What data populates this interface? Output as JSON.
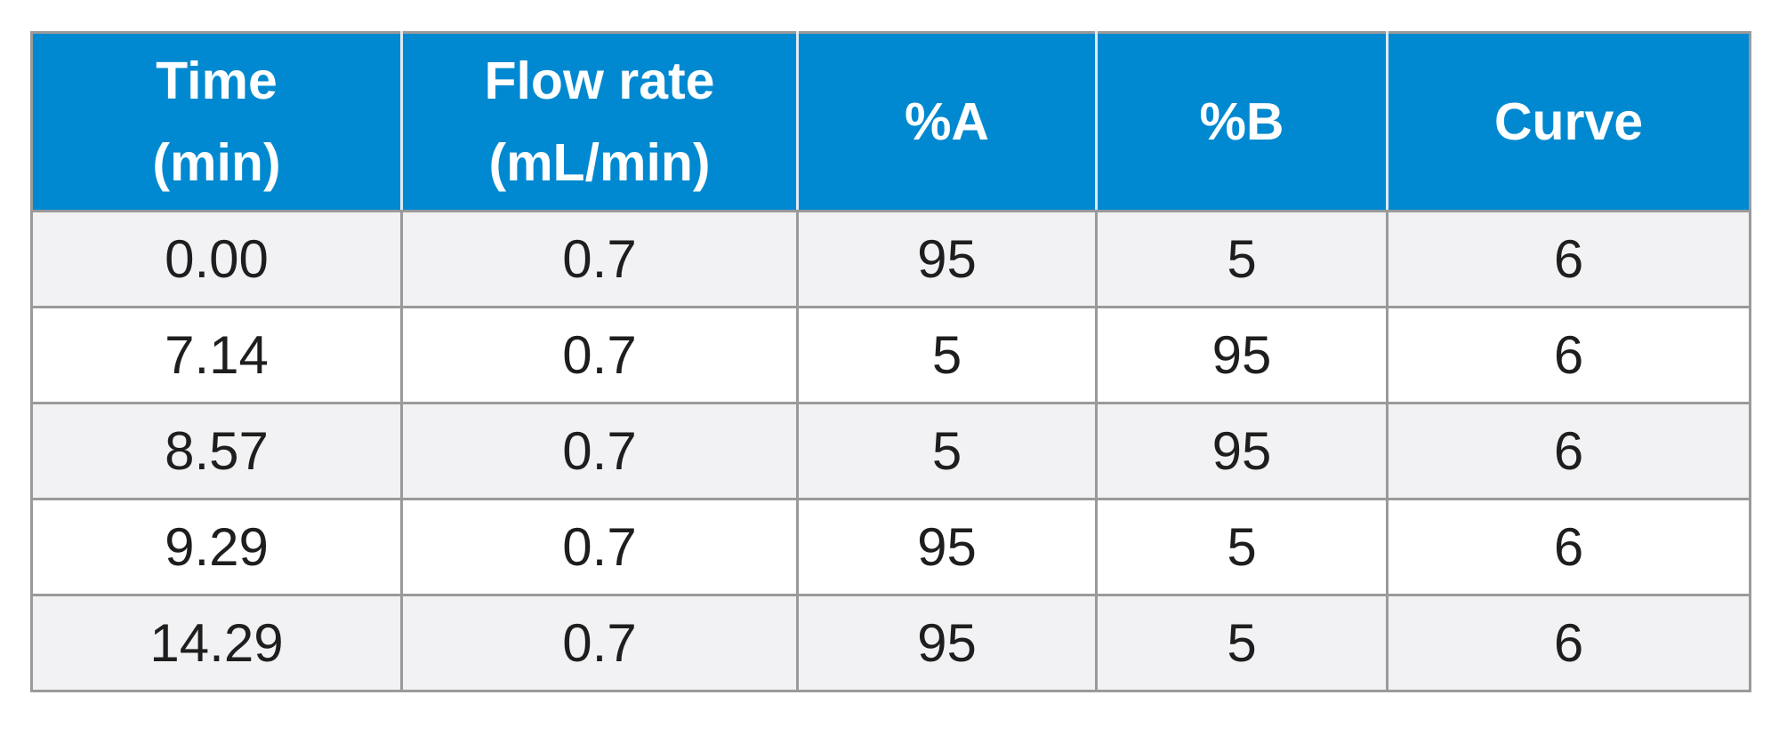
{
  "headers": [
    {
      "line1": "Time",
      "line2": "(min)"
    },
    {
      "line1": "Flow rate",
      "line2": "(mL/min)"
    },
    {
      "line1": "%A",
      "line2": ""
    },
    {
      "line1": "%B",
      "line2": ""
    },
    {
      "line1": "Curve",
      "line2": ""
    }
  ],
  "rows": [
    [
      "0.00",
      "0.7",
      "95",
      "5",
      "6"
    ],
    [
      "7.14",
      "0.7",
      "5",
      "95",
      "6"
    ],
    [
      "8.57",
      "0.7",
      "5",
      "95",
      "6"
    ],
    [
      "9.29",
      "0.7",
      "95",
      "5",
      "6"
    ],
    [
      "14.29",
      "0.7",
      "95",
      "5",
      "6"
    ]
  ],
  "colors": {
    "header_bg": "#0089d0",
    "header_text": "#ffffff",
    "row_shaded": "#f2f2f4",
    "row_plain": "#ffffff",
    "grid": "#9a9a9a"
  }
}
